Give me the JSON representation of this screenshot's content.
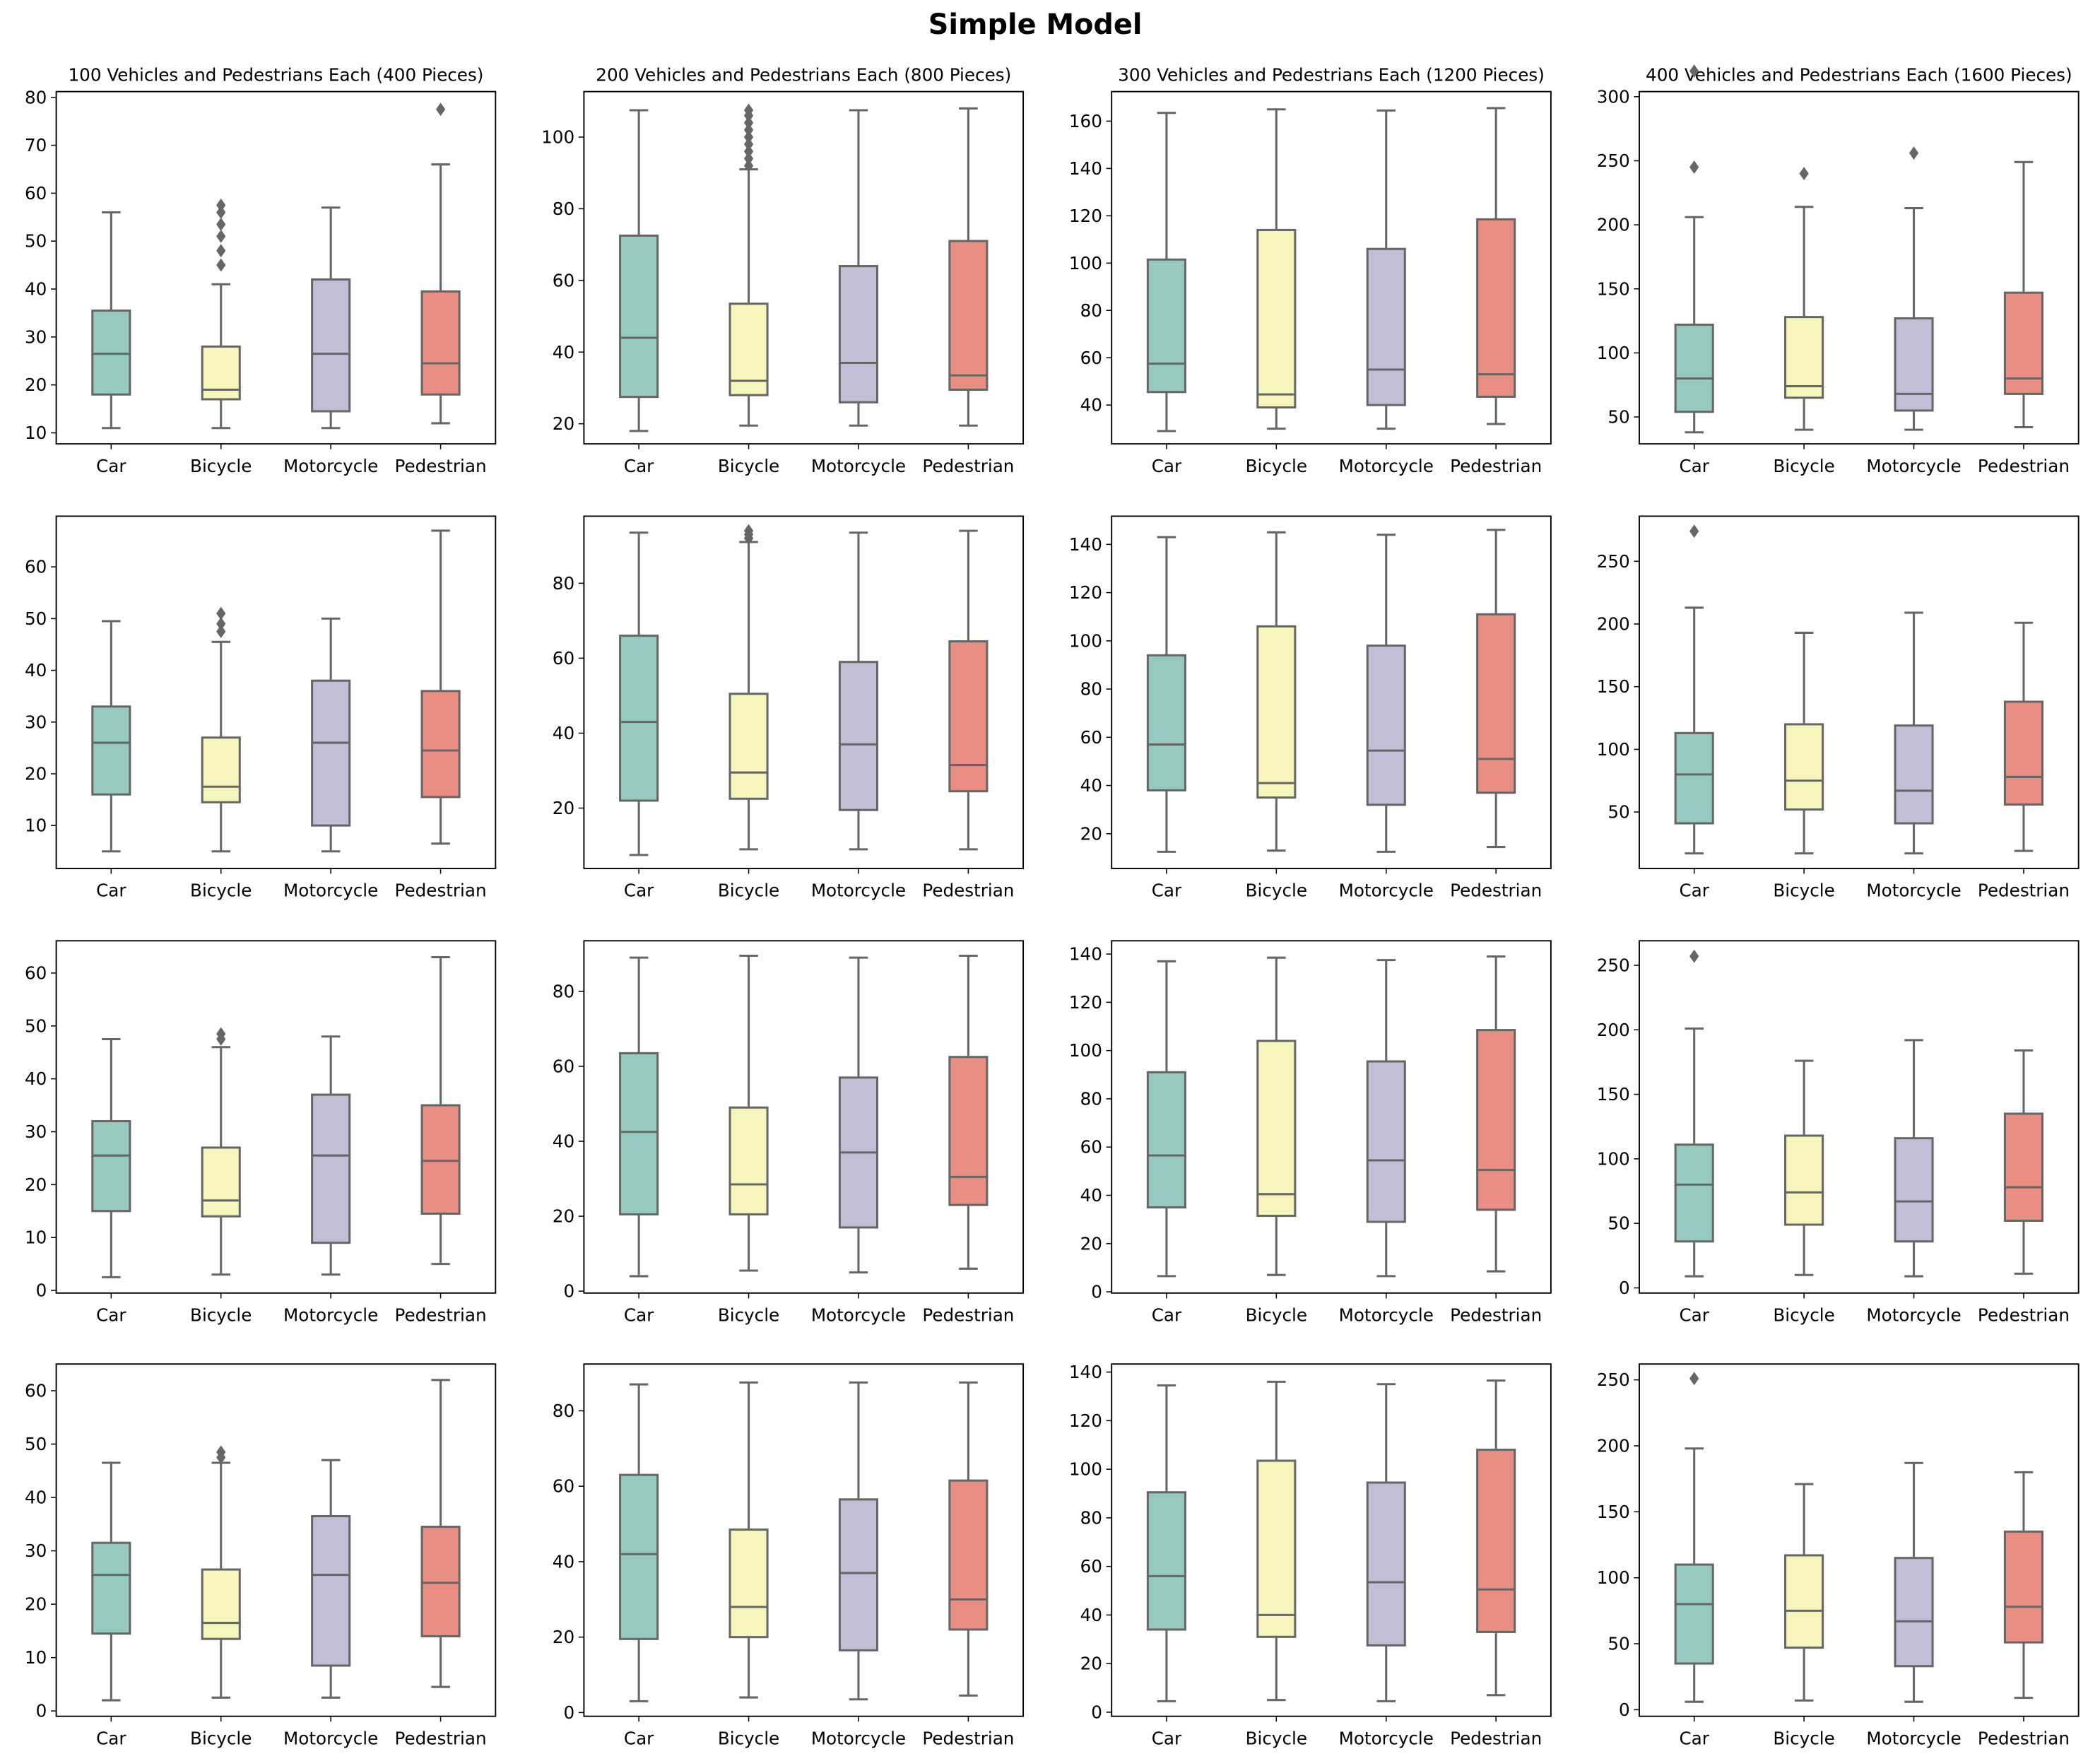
{
  "title": "Simple Model",
  "colors": {
    "Car": "#96cac1",
    "Bicycle": "#f6f6bc",
    "Motorcycle": "#c1bed6",
    "Pedestrian": "#ea8d83",
    "line": "#666666"
  },
  "chart_data": {
    "type": "box",
    "categories": [
      "Car",
      "Bicycle",
      "Motorcycle",
      "Pedestrian"
    ],
    "column_titles": [
      "100 Vehicles and Pedestrians Each (400 Pieces)",
      "200 Vehicles and Pedestrians Each (800 Pieces)",
      "300 Vehicles and Pedestrians Each (1200 Pieces)",
      "400 Vehicles and Pedestrians Each (1600 Pieces)"
    ],
    "box_format": "[whisker_low, q1, median, q3, whisker_high, outliers]",
    "subplots": [
      {
        "row": 0,
        "col": 0,
        "ylim": [
          7.7,
          81.2
        ],
        "yticks": [
          10,
          20,
          30,
          40,
          50,
          60,
          70,
          80
        ],
        "boxes": [
          [
            11,
            18,
            26.5,
            35.5,
            56,
            []
          ],
          [
            11,
            17,
            19,
            28,
            41,
            [
              45,
              48,
              51,
              53.5,
              56,
              57.5
            ]
          ],
          [
            11,
            14.5,
            26.5,
            42,
            57,
            []
          ],
          [
            12,
            18,
            24.5,
            39.5,
            66,
            [
              77.5
            ]
          ]
        ]
      },
      {
        "row": 0,
        "col": 1,
        "ylim": [
          14.4,
          112.7
        ],
        "yticks": [
          20,
          40,
          60,
          80,
          100
        ],
        "boxes": [
          [
            18,
            27.5,
            44,
            72.5,
            107.5,
            []
          ],
          [
            19.5,
            28,
            32,
            53.5,
            91,
            [
              92,
              94,
              96,
              98,
              100,
              102,
              104,
              106,
              107.5
            ]
          ],
          [
            19.5,
            26,
            37,
            64,
            107.5,
            []
          ],
          [
            19.5,
            29.5,
            33.5,
            71,
            108,
            []
          ]
        ]
      },
      {
        "row": 0,
        "col": 2,
        "ylim": [
          23.6,
          172.5
        ],
        "yticks": [
          40,
          60,
          80,
          100,
          120,
          140,
          160
        ],
        "boxes": [
          [
            29,
            45.5,
            57.5,
            101.5,
            163.5,
            []
          ],
          [
            30,
            39,
            44.5,
            114,
            165,
            []
          ],
          [
            30,
            40,
            55,
            106,
            164.5,
            []
          ],
          [
            32,
            43.5,
            53,
            118.5,
            165.5,
            []
          ]
        ]
      },
      {
        "row": 0,
        "col": 3,
        "ylim": [
          29,
          304
        ],
        "yticks": [
          50,
          100,
          150,
          200,
          250,
          300
        ],
        "boxes": [
          [
            38,
            54,
            80,
            122,
            206,
            [
              245,
              320
            ]
          ],
          [
            40,
            65,
            74,
            128,
            214,
            [
              240
            ]
          ],
          [
            40,
            55,
            68,
            127,
            213,
            [
              256
            ]
          ],
          [
            42,
            68,
            80,
            147,
            249,
            []
          ]
        ]
      },
      {
        "row": 1,
        "col": 0,
        "ylim": [
          1.7,
          69.8
        ],
        "yticks": [
          10,
          20,
          30,
          40,
          50,
          60
        ],
        "boxes": [
          [
            5,
            16,
            26,
            33,
            49.5,
            []
          ],
          [
            5,
            14.5,
            17.5,
            27,
            45.5,
            [
              47.5,
              49,
              51
            ]
          ],
          [
            5,
            10,
            26,
            38,
            50,
            []
          ],
          [
            6.5,
            15.5,
            24.5,
            36,
            67,
            []
          ]
        ]
      },
      {
        "row": 1,
        "col": 1,
        "ylim": [
          3.9,
          97.9
        ],
        "yticks": [
          20,
          40,
          60,
          80
        ],
        "boxes": [
          [
            7.5,
            22,
            43,
            66,
            93.5,
            []
          ],
          [
            9,
            22.5,
            29.5,
            50.5,
            91,
            [
              92,
              93,
              94
            ]
          ],
          [
            9,
            19.5,
            37,
            59,
            93.5,
            []
          ],
          [
            9,
            24.5,
            31.5,
            64.5,
            94,
            []
          ]
        ]
      },
      {
        "row": 1,
        "col": 2,
        "ylim": [
          5.6,
          151.7
        ],
        "yticks": [
          20,
          40,
          60,
          80,
          100,
          120,
          140
        ],
        "boxes": [
          [
            12.5,
            38,
            57,
            94,
            143,
            []
          ],
          [
            13,
            35,
            41,
            106,
            145,
            []
          ],
          [
            12.5,
            32,
            54.5,
            98,
            144,
            []
          ],
          [
            14.5,
            37,
            51,
            111,
            146,
            []
          ]
        ]
      },
      {
        "row": 1,
        "col": 3,
        "ylim": [
          5,
          286
        ],
        "yticks": [
          50,
          100,
          150,
          200,
          250
        ],
        "boxes": [
          [
            17,
            41,
            80,
            113,
            213,
            [
              274
            ]
          ],
          [
            17,
            52,
            75,
            120,
            193,
            []
          ],
          [
            17,
            41,
            67,
            119,
            209,
            []
          ],
          [
            19,
            56,
            78,
            138,
            201,
            []
          ]
        ]
      },
      {
        "row": 2,
        "col": 0,
        "ylim": [
          -0.5,
          66.1
        ],
        "yticks": [
          0,
          10,
          20,
          30,
          40,
          50,
          60
        ],
        "boxes": [
          [
            2.5,
            15,
            25.5,
            32,
            47.5,
            []
          ],
          [
            3,
            14,
            17,
            27,
            46,
            [
              47.5,
              48.5
            ]
          ],
          [
            3,
            9,
            25.5,
            37,
            48,
            []
          ],
          [
            5,
            14.5,
            24.5,
            35,
            63,
            []
          ]
        ]
      },
      {
        "row": 2,
        "col": 1,
        "ylim": [
          -0.5,
          93.5
        ],
        "yticks": [
          0,
          20,
          40,
          60,
          80
        ],
        "boxes": [
          [
            4,
            20.5,
            42.5,
            63.5,
            89,
            []
          ],
          [
            5.5,
            20.5,
            28.5,
            49,
            89.5,
            []
          ],
          [
            5,
            17,
            37,
            57,
            89,
            []
          ],
          [
            6,
            23,
            30.5,
            62.5,
            89.5,
            []
          ]
        ]
      },
      {
        "row": 2,
        "col": 2,
        "ylim": [
          -0.5,
          145.5
        ],
        "yticks": [
          0,
          20,
          40,
          60,
          80,
          100,
          120,
          140
        ],
        "boxes": [
          [
            6.5,
            35,
            56.5,
            91,
            137,
            []
          ],
          [
            7,
            31.5,
            40.5,
            104,
            138.5,
            []
          ],
          [
            6.5,
            29,
            54.5,
            95.5,
            137.5,
            []
          ],
          [
            8.5,
            34,
            50.5,
            108.5,
            139,
            []
          ]
        ]
      },
      {
        "row": 2,
        "col": 3,
        "ylim": [
          -4,
          269
        ],
        "yticks": [
          0,
          50,
          100,
          150,
          200,
          250
        ],
        "boxes": [
          [
            9,
            36,
            80,
            111,
            201,
            [
              257
            ]
          ],
          [
            10,
            49,
            74,
            118,
            176,
            []
          ],
          [
            9,
            36,
            67,
            116,
            192,
            []
          ],
          [
            11,
            52,
            78,
            135,
            184,
            []
          ]
        ]
      },
      {
        "row": 3,
        "col": 0,
        "ylim": [
          -1,
          65
        ],
        "yticks": [
          0,
          10,
          20,
          30,
          40,
          50,
          60
        ],
        "boxes": [
          [
            2,
            14.5,
            25.5,
            31.5,
            46.5,
            []
          ],
          [
            2.5,
            13.5,
            16.5,
            26.5,
            46.5,
            [
              47.5,
              48.5
            ]
          ],
          [
            2.5,
            8.5,
            25.5,
            36.5,
            47,
            []
          ],
          [
            4.5,
            14,
            24,
            34.5,
            62,
            []
          ]
        ]
      },
      {
        "row": 3,
        "col": 1,
        "ylim": [
          -1,
          92.4
        ],
        "yticks": [
          0,
          20,
          40,
          60,
          80
        ],
        "boxes": [
          [
            3,
            19.5,
            42,
            63,
            87,
            []
          ],
          [
            4,
            20,
            28,
            48.5,
            87.5,
            []
          ],
          [
            3.5,
            16.5,
            37,
            56.5,
            87.5,
            []
          ],
          [
            4.5,
            22,
            30,
            61.5,
            87.5,
            []
          ]
        ]
      },
      {
        "row": 3,
        "col": 2,
        "ylim": [
          -1.7,
          143.3
        ],
        "yticks": [
          0,
          20,
          40,
          60,
          80,
          100,
          120,
          140
        ],
        "boxes": [
          [
            4.5,
            34,
            56,
            90.5,
            134.5,
            []
          ],
          [
            5,
            31,
            40,
            103.5,
            136,
            []
          ],
          [
            4.5,
            27.5,
            53.5,
            94.5,
            135,
            []
          ],
          [
            7,
            33,
            50.5,
            108,
            136.5,
            []
          ]
        ]
      },
      {
        "row": 3,
        "col": 3,
        "ylim": [
          -5,
          262
        ],
        "yticks": [
          0,
          50,
          100,
          150,
          200,
          250
        ],
        "boxes": [
          [
            6,
            35,
            80,
            110,
            198,
            [
              251
            ]
          ],
          [
            7,
            47,
            75,
            117,
            171,
            []
          ],
          [
            6,
            33,
            67,
            115,
            187,
            []
          ],
          [
            9,
            51,
            78,
            135,
            180,
            []
          ]
        ]
      }
    ]
  }
}
